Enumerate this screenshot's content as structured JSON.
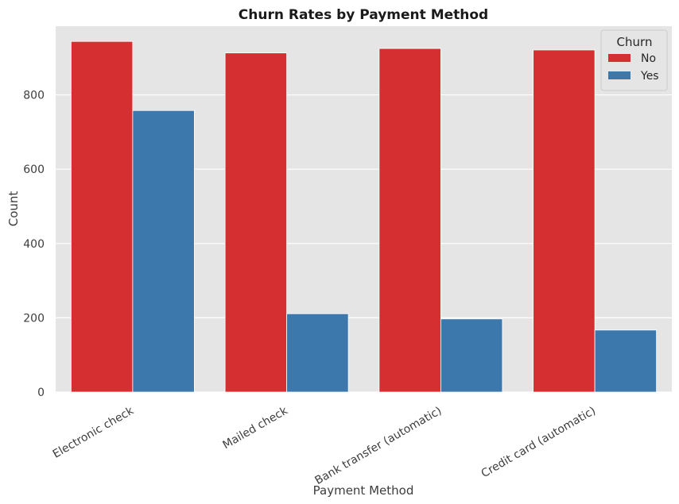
{
  "chart_data": {
    "type": "bar",
    "title": "Churn Rates by Payment Method",
    "xlabel": "Payment Method",
    "ylabel": "Count",
    "categories": [
      "Electronic check",
      "Mailed check",
      "Bank transfer (automatic)",
      "Credit card (automatic)"
    ],
    "series": [
      {
        "name": "No",
        "color": "#d62f32",
        "values": [
          944,
          913,
          925,
          921
        ]
      },
      {
        "name": "Yes",
        "color": "#3d78ad",
        "values": [
          758,
          211,
          197,
          167
        ]
      }
    ],
    "yticks": [
      0,
      200,
      400,
      600,
      800
    ],
    "ylim": [
      0,
      985
    ],
    "grid": true,
    "background": "#e5e5e5",
    "legend": {
      "title": "Churn",
      "placement": "top-right"
    }
  }
}
